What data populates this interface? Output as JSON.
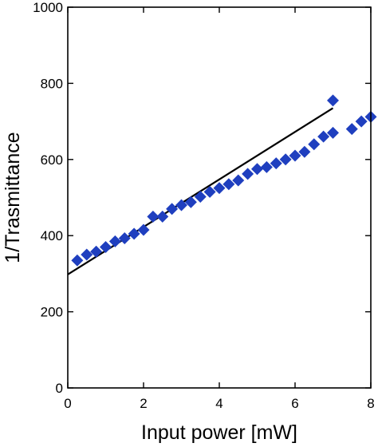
{
  "chart_data": {
    "type": "scatter",
    "xlabel": "Input power [mW]",
    "ylabel": "1/Trasmittance",
    "xlim": [
      0,
      8
    ],
    "ylim": [
      0,
      1000
    ],
    "x_ticks": [
      0,
      2,
      4,
      6,
      8
    ],
    "y_ticks": [
      0,
      200,
      400,
      600,
      800,
      1000
    ],
    "x_tick_labels": [
      "0",
      "2",
      "4",
      "6",
      "8"
    ],
    "y_tick_labels": [
      "0",
      "200",
      "400",
      "600",
      "800",
      "1000"
    ],
    "grid": false,
    "legend": "none",
    "series": [
      {
        "kind": "points",
        "marker": "diamond",
        "color": "#1f3fbf",
        "points": [
          [
            0.25,
            335
          ],
          [
            0.5,
            350
          ],
          [
            0.75,
            358
          ],
          [
            1.0,
            370
          ],
          [
            1.25,
            385
          ],
          [
            1.5,
            393
          ],
          [
            1.75,
            405
          ],
          [
            2.0,
            415
          ],
          [
            2.25,
            450
          ],
          [
            2.5,
            450
          ],
          [
            2.75,
            470
          ],
          [
            3.0,
            480
          ],
          [
            3.25,
            488
          ],
          [
            3.5,
            502
          ],
          [
            3.75,
            515
          ],
          [
            4.0,
            525
          ],
          [
            4.25,
            535
          ],
          [
            4.5,
            545
          ],
          [
            4.75,
            562
          ],
          [
            5.0,
            575
          ],
          [
            5.25,
            580
          ],
          [
            5.5,
            590
          ],
          [
            5.75,
            600
          ],
          [
            6.0,
            610
          ],
          [
            6.25,
            620
          ],
          [
            6.5,
            640
          ],
          [
            6.75,
            660
          ],
          [
            7.0,
            670
          ],
          [
            7.5,
            680
          ],
          [
            7.75,
            700
          ],
          [
            8.0,
            712
          ],
          [
            7.0,
            755
          ]
        ]
      },
      {
        "kind": "line",
        "color": "#000000",
        "points": [
          [
            0,
            298
          ],
          [
            7.0,
            735
          ]
        ]
      }
    ]
  }
}
